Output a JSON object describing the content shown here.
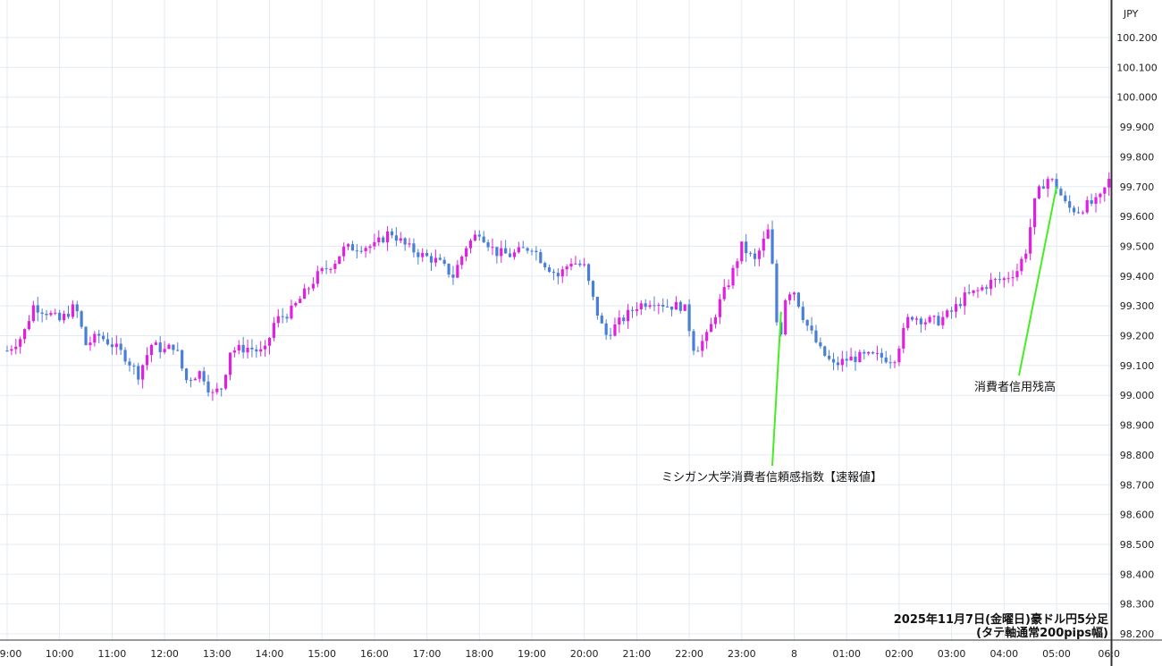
{
  "chart_data": {
    "type": "candlestick",
    "currency_label": "JPY",
    "y_range": [
      98.15,
      100.25
    ],
    "y_ticks": [
      "100.200",
      "100.100",
      "100.000",
      "99.900",
      "99.800",
      "99.700",
      "99.600",
      "99.500",
      "99.400",
      "99.300",
      "99.200",
      "99.100",
      "99.000",
      "98.900",
      "98.800",
      "98.700",
      "98.600",
      "98.500",
      "98.400",
      "98.300",
      "98.200"
    ],
    "x_ticks": [
      "9:00",
      "10:00",
      "11:00",
      "12:00",
      "13:00",
      "14:00",
      "15:00",
      "16:00",
      "17:00",
      "18:00",
      "19:00",
      "20:00",
      "21:00",
      "22:00",
      "23:00",
      "8",
      "01:00",
      "02:00",
      "03:00",
      "04:00",
      "05:00",
      "06:0"
    ],
    "grid": true,
    "colors": {
      "up": "#e020e0",
      "down": "#4a7fd8",
      "annotation_line": "#44ee22",
      "grid": "#e3ebf2"
    },
    "annotations": [
      {
        "label": "ミシガン大学消費者信頼感指数【速報値】",
        "time": "23:45",
        "price": 99.28
      },
      {
        "label": "消費者信用残高",
        "time": "05:00",
        "price": 99.7
      }
    ],
    "caption_line1": "2025年11月7日(金曜日)豪ドル円5分足",
    "caption_line2": "(タテ軸通常200pips幅)",
    "close_path": [
      [
        9.0,
        99.15
      ],
      [
        9.3,
        99.2
      ],
      [
        9.5,
        99.3
      ],
      [
        9.75,
        99.28
      ],
      [
        10.0,
        99.25
      ],
      [
        10.3,
        99.3
      ],
      [
        10.5,
        99.17
      ],
      [
        10.75,
        99.2
      ],
      [
        11.0,
        99.17
      ],
      [
        11.25,
        99.13
      ],
      [
        11.5,
        99.07
      ],
      [
        11.75,
        99.17
      ],
      [
        12.0,
        99.15
      ],
      [
        12.2,
        99.17
      ],
      [
        12.4,
        99.05
      ],
      [
        12.7,
        99.08
      ],
      [
        12.9,
        99.0
      ],
      [
        13.1,
        99.03
      ],
      [
        13.25,
        99.15
      ],
      [
        13.6,
        99.16
      ],
      [
        13.9,
        99.14
      ],
      [
        14.1,
        99.25
      ],
      [
        14.4,
        99.28
      ],
      [
        14.7,
        99.35
      ],
      [
        14.9,
        99.4
      ],
      [
        15.25,
        99.45
      ],
      [
        15.4,
        99.49
      ],
      [
        15.75,
        99.5
      ],
      [
        16.0,
        99.5
      ],
      [
        16.3,
        99.55
      ],
      [
        16.6,
        99.5
      ],
      [
        16.9,
        99.47
      ],
      [
        17.2,
        99.45
      ],
      [
        17.5,
        99.4
      ],
      [
        17.75,
        99.5
      ],
      [
        18.0,
        99.55
      ],
      [
        18.3,
        99.48
      ],
      [
        18.6,
        99.47
      ],
      [
        19.0,
        99.5
      ],
      [
        19.2,
        99.45
      ],
      [
        19.5,
        99.4
      ],
      [
        19.75,
        99.45
      ],
      [
        20.0,
        99.43
      ],
      [
        20.2,
        99.3
      ],
      [
        20.4,
        99.2
      ],
      [
        20.7,
        99.25
      ],
      [
        21.0,
        99.3
      ],
      [
        21.3,
        99.32
      ],
      [
        21.6,
        99.3
      ],
      [
        21.9,
        99.3
      ],
      [
        22.1,
        99.15
      ],
      [
        22.35,
        99.2
      ],
      [
        22.55,
        99.3
      ],
      [
        22.8,
        99.4
      ],
      [
        23.0,
        99.5
      ],
      [
        23.25,
        99.45
      ],
      [
        23.5,
        99.55
      ],
      [
        23.62,
        99.38
      ],
      [
        23.7,
        99.15
      ],
      [
        23.85,
        99.35
      ],
      [
        24.0,
        99.35
      ],
      [
        24.2,
        99.25
      ],
      [
        24.5,
        99.15
      ],
      [
        24.75,
        99.1
      ],
      [
        25.0,
        99.12
      ],
      [
        25.3,
        99.13
      ],
      [
        25.6,
        99.13
      ],
      [
        25.9,
        99.12
      ],
      [
        26.2,
        99.27
      ],
      [
        26.5,
        99.25
      ],
      [
        26.75,
        99.25
      ],
      [
        27.0,
        99.28
      ],
      [
        27.25,
        99.33
      ],
      [
        27.5,
        99.35
      ],
      [
        27.75,
        99.38
      ],
      [
        28.0,
        99.39
      ],
      [
        28.25,
        99.42
      ],
      [
        28.45,
        99.5
      ],
      [
        28.55,
        99.63
      ],
      [
        28.7,
        99.7
      ],
      [
        28.85,
        99.73
      ],
      [
        29.0,
        99.7
      ],
      [
        29.2,
        99.63
      ],
      [
        29.4,
        99.62
      ],
      [
        29.6,
        99.64
      ],
      [
        29.8,
        99.65
      ],
      [
        30.0,
        99.72
      ]
    ]
  }
}
